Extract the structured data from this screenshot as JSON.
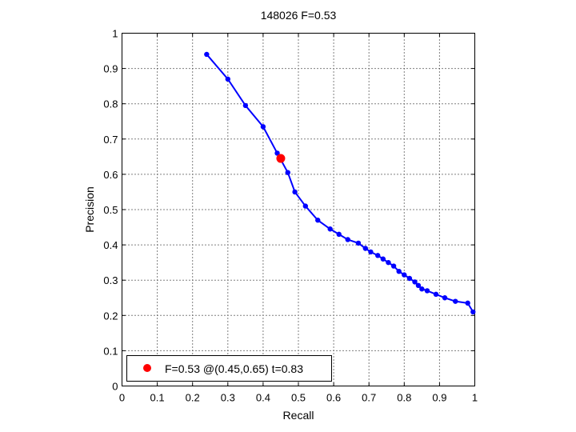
{
  "chart_data": {
    "type": "line",
    "title": "148026 F=0.53",
    "xlabel": "Recall",
    "ylabel": "Precision",
    "xlim": [
      0,
      1
    ],
    "ylim": [
      0,
      1
    ],
    "grid": true,
    "xticks": [
      "0",
      "0.1",
      "0.2",
      "0.3",
      "0.4",
      "0.5",
      "0.6",
      "0.7",
      "0.8",
      "0.9",
      "1"
    ],
    "yticks": [
      "0",
      "0.1",
      "0.2",
      "0.3",
      "0.4",
      "0.5",
      "0.6",
      "0.7",
      "0.8",
      "0.9",
      "1"
    ],
    "series": [
      {
        "color": "#0000ff",
        "marker": "circle",
        "x": [
          0.24,
          0.3,
          0.35,
          0.4,
          0.44,
          0.47,
          0.49,
          0.52,
          0.555,
          0.59,
          0.615,
          0.64,
          0.67,
          0.69,
          0.705,
          0.725,
          0.74,
          0.755,
          0.77,
          0.785,
          0.8,
          0.815,
          0.83,
          0.84,
          0.85,
          0.865,
          0.89,
          0.915,
          0.945,
          0.98,
          0.995
        ],
        "y": [
          0.94,
          0.87,
          0.795,
          0.735,
          0.66,
          0.605,
          0.55,
          0.51,
          0.47,
          0.445,
          0.43,
          0.415,
          0.405,
          0.39,
          0.38,
          0.37,
          0.36,
          0.35,
          0.34,
          0.325,
          0.315,
          0.305,
          0.295,
          0.285,
          0.275,
          0.27,
          0.26,
          0.25,
          0.24,
          0.235,
          0.21
        ]
      }
    ],
    "highlight": {
      "color": "#ff0000",
      "x": 0.45,
      "y": 0.645
    },
    "legend": {
      "position": "bottom-left",
      "entries": [
        "F=0.53 @(0.45,0.65) t=0.83"
      ]
    }
  }
}
